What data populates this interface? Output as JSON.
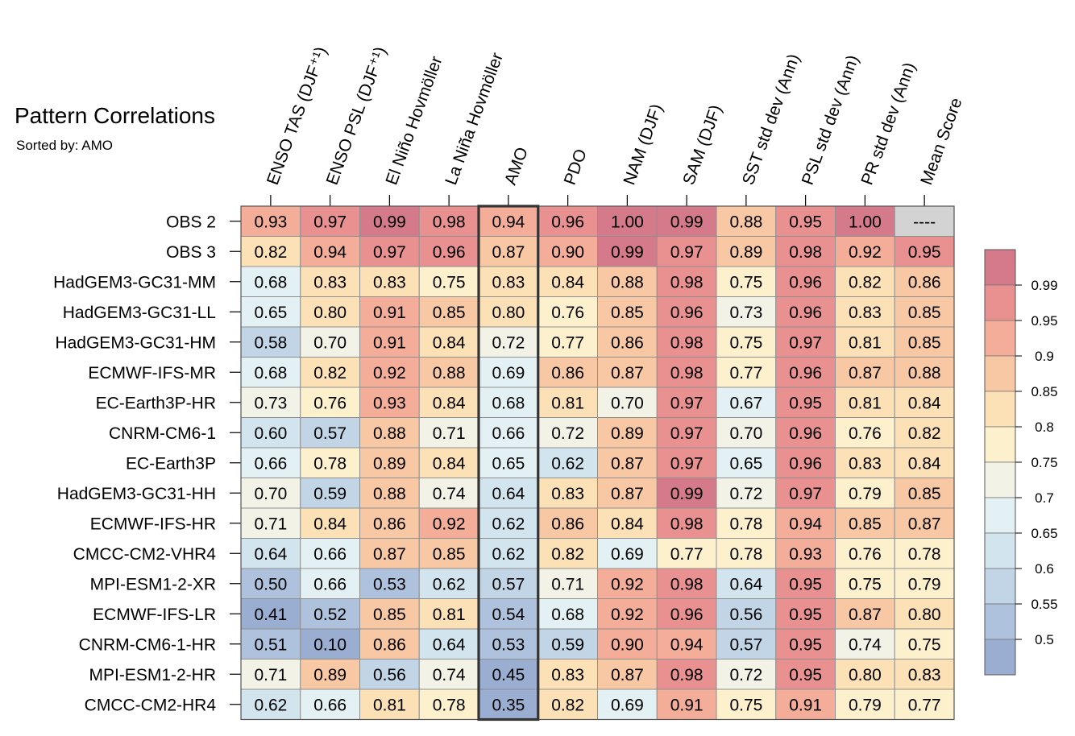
{
  "chart_data": {
    "type": "heatmap",
    "title": "Pattern Correlations",
    "subtitle": "Sorted by: AMO",
    "highlighted_column": "AMO",
    "columns": [
      "ENSO TAS (DJF⁺¹)",
      "ENSO PSL (DJF⁺¹)",
      "El Niño Hovmöller",
      "La Niña Hovmöller",
      "AMO",
      "PDO",
      "NAM (DJF)",
      "SAM (DJF)",
      "SST std dev (Ann)",
      "PSL std dev (Ann)",
      "PR std dev (Ann)",
      "Mean Score"
    ],
    "rows": [
      {
        "label": "OBS 2",
        "values": [
          0.93,
          0.97,
          0.99,
          0.98,
          0.94,
          0.96,
          1.0,
          0.99,
          0.88,
          0.95,
          1.0,
          null
        ]
      },
      {
        "label": "OBS 3",
        "values": [
          0.82,
          0.94,
          0.97,
          0.96,
          0.87,
          0.9,
          0.99,
          0.97,
          0.89,
          0.98,
          0.92,
          0.95
        ]
      },
      {
        "label": "HadGEM3-GC31-MM",
        "values": [
          0.68,
          0.83,
          0.83,
          0.75,
          0.83,
          0.84,
          0.88,
          0.98,
          0.75,
          0.96,
          0.82,
          0.86
        ]
      },
      {
        "label": "HadGEM3-GC31-LL",
        "values": [
          0.65,
          0.8,
          0.91,
          0.85,
          0.8,
          0.76,
          0.85,
          0.96,
          0.73,
          0.96,
          0.83,
          0.85
        ]
      },
      {
        "label": "HadGEM3-GC31-HM",
        "values": [
          0.58,
          0.7,
          0.91,
          0.84,
          0.72,
          0.77,
          0.86,
          0.98,
          0.75,
          0.97,
          0.81,
          0.85
        ]
      },
      {
        "label": "ECMWF-IFS-MR",
        "values": [
          0.68,
          0.82,
          0.92,
          0.88,
          0.69,
          0.86,
          0.87,
          0.98,
          0.77,
          0.96,
          0.87,
          0.88
        ]
      },
      {
        "label": "EC-Earth3P-HR",
        "values": [
          0.73,
          0.76,
          0.93,
          0.84,
          0.68,
          0.81,
          0.7,
          0.97,
          0.67,
          0.95,
          0.81,
          0.84
        ]
      },
      {
        "label": "CNRM-CM6-1",
        "values": [
          0.6,
          0.57,
          0.88,
          0.71,
          0.66,
          0.72,
          0.89,
          0.97,
          0.7,
          0.96,
          0.76,
          0.82
        ]
      },
      {
        "label": "EC-Earth3P",
        "values": [
          0.66,
          0.78,
          0.89,
          0.84,
          0.65,
          0.62,
          0.87,
          0.97,
          0.65,
          0.96,
          0.83,
          0.84
        ]
      },
      {
        "label": "HadGEM3-GC31-HH",
        "values": [
          0.7,
          0.59,
          0.88,
          0.74,
          0.64,
          0.83,
          0.87,
          0.99,
          0.72,
          0.97,
          0.79,
          0.85
        ]
      },
      {
        "label": "ECMWF-IFS-HR",
        "values": [
          0.71,
          0.84,
          0.86,
          0.92,
          0.62,
          0.86,
          0.84,
          0.98,
          0.78,
          0.94,
          0.85,
          0.87
        ]
      },
      {
        "label": "CMCC-CM2-VHR4",
        "values": [
          0.64,
          0.66,
          0.87,
          0.85,
          0.62,
          0.82,
          0.69,
          0.77,
          0.78,
          0.93,
          0.76,
          0.78
        ]
      },
      {
        "label": "MPI-ESM1-2-XR",
        "values": [
          0.5,
          0.66,
          0.53,
          0.62,
          0.57,
          0.71,
          0.92,
          0.98,
          0.64,
          0.95,
          0.75,
          0.79
        ]
      },
      {
        "label": "ECMWF-IFS-LR",
        "values": [
          0.41,
          0.52,
          0.85,
          0.81,
          0.54,
          0.68,
          0.92,
          0.96,
          0.56,
          0.95,
          0.87,
          0.8
        ]
      },
      {
        "label": "CNRM-CM6-1-HR",
        "values": [
          0.51,
          0.1,
          0.86,
          0.64,
          0.53,
          0.59,
          0.9,
          0.94,
          0.57,
          0.95,
          0.74,
          0.75
        ]
      },
      {
        "label": "MPI-ESM1-2-HR",
        "values": [
          0.71,
          0.89,
          0.56,
          0.74,
          0.45,
          0.83,
          0.87,
          0.98,
          0.72,
          0.95,
          0.8,
          0.83
        ]
      },
      {
        "label": "CMCC-CM2-HR4",
        "values": [
          0.62,
          0.66,
          0.81,
          0.78,
          0.35,
          0.82,
          0.69,
          0.91,
          0.75,
          0.91,
          0.79,
          0.77
        ]
      }
    ],
    "missing_text": "----",
    "missing_color": "#d3d3d3",
    "colorbar": {
      "ticks": [
        "0.99",
        "0.95",
        "0.9",
        "0.85",
        "0.8",
        "0.75",
        "0.7",
        "0.65",
        "0.6",
        "0.55",
        "0.5"
      ],
      "bins": [
        {
          "min": null,
          "max": 0.5,
          "color": "#9aaed2"
        },
        {
          "min": 0.5,
          "max": 0.55,
          "color": "#aec2dd"
        },
        {
          "min": 0.55,
          "max": 0.6,
          "color": "#c1d5e6"
        },
        {
          "min": 0.6,
          "max": 0.65,
          "color": "#d2e4ee"
        },
        {
          "min": 0.65,
          "max": 0.7,
          "color": "#e4f1f4"
        },
        {
          "min": 0.7,
          "max": 0.75,
          "color": "#f2f2e7"
        },
        {
          "min": 0.75,
          "max": 0.8,
          "color": "#fdf0cd"
        },
        {
          "min": 0.8,
          "max": 0.85,
          "color": "#fce0b6"
        },
        {
          "min": 0.85,
          "max": 0.9,
          "color": "#f8c7a4"
        },
        {
          "min": 0.9,
          "max": 0.95,
          "color": "#f3ad98"
        },
        {
          "min": 0.95,
          "max": 0.99,
          "color": "#e99090"
        },
        {
          "min": 0.99,
          "max": null,
          "color": "#d47a8a"
        }
      ]
    }
  }
}
